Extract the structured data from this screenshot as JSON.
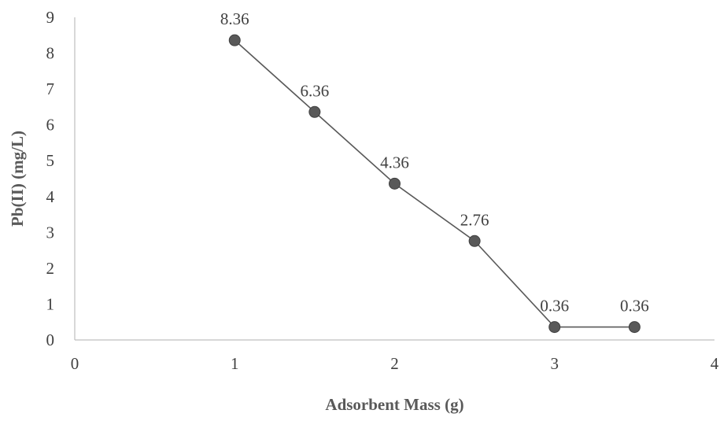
{
  "chart_data": {
    "type": "scatter",
    "title": "",
    "xlabel": "Adsorbent Mass (g)",
    "ylabel": "Pb(II) (mg/L)",
    "xlim": [
      0,
      4
    ],
    "ylim": [
      0,
      9
    ],
    "x_ticks": [
      "0",
      "1",
      "2",
      "3",
      "4"
    ],
    "y_ticks": [
      "0",
      "1",
      "2",
      "3",
      "4",
      "5",
      "6",
      "7",
      "8",
      "9"
    ],
    "grid": false,
    "legend": "none",
    "line_connected": true,
    "series_color": "#595959",
    "series": [
      {
        "x": [
          1,
          1.5,
          2,
          2.5,
          3,
          3.5
        ],
        "y": [
          8.36,
          6.36,
          4.36,
          2.76,
          0.36,
          0.36
        ],
        "labels": [
          "8.36",
          "6.36",
          "4.36",
          "2.76",
          "0.36",
          "0.36"
        ]
      }
    ]
  }
}
